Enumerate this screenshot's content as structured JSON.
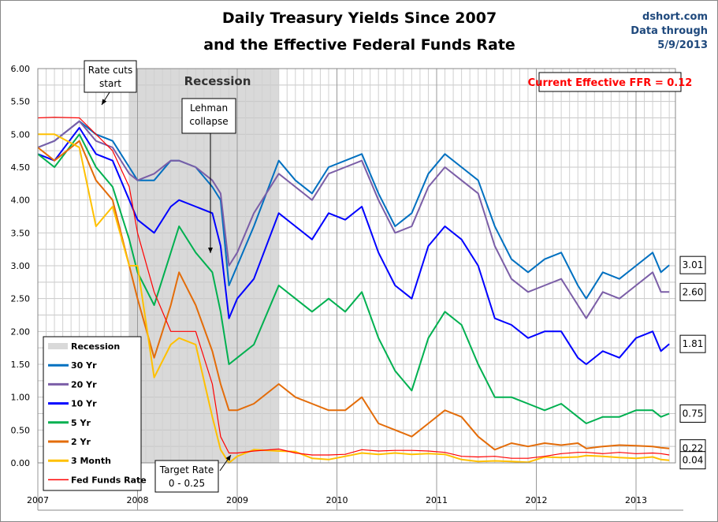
{
  "chart_data": {
    "type": "line",
    "title": "Daily Treasury Yields Since 2007",
    "subtitle": "and the Effective Federal Funds Rate",
    "source": "dshort.com",
    "data_through_label": "Data through",
    "data_through_date": "5/9/2013",
    "current_ffr_label": "Current Effective FFR = 0.12",
    "ylim": [
      0,
      6
    ],
    "y_ticks": [
      "0.00",
      "0.50",
      "1.00",
      "1.50",
      "2.00",
      "2.50",
      "3.00",
      "3.50",
      "4.00",
      "4.50",
      "5.00",
      "5.50",
      "6.00"
    ],
    "x_ticks": [
      "2007",
      "2008",
      "2009",
      "2010",
      "2011",
      "2012",
      "2013"
    ],
    "grid": true,
    "legend_placement": "bottom-left",
    "recession": {
      "label": "Recession",
      "start": "2007-12",
      "end": "2009-06",
      "color": "#d9d9d9"
    },
    "annotations": [
      {
        "text": [
          "Rate cuts",
          "start"
        ],
        "date": "2007-09"
      },
      {
        "text": [
          "Lehman",
          "collapse"
        ],
        "date": "2008-09"
      },
      {
        "text": [
          "Target Rate",
          "0 - 0.25"
        ],
        "date": "2008-12"
      }
    ],
    "dates": [
      "2007-01",
      "2007-03",
      "2007-06",
      "2007-08",
      "2007-10",
      "2007-12",
      "2008-01",
      "2008-03",
      "2008-05",
      "2008-06",
      "2008-08",
      "2008-10",
      "2008-11",
      "2008-12",
      "2009-01",
      "2009-03",
      "2009-06",
      "2009-08",
      "2009-10",
      "2009-12",
      "2010-02",
      "2010-04",
      "2010-06",
      "2010-08",
      "2010-10",
      "2010-12",
      "2011-02",
      "2011-04",
      "2011-06",
      "2011-08",
      "2011-10",
      "2011-12",
      "2012-02",
      "2012-04",
      "2012-06",
      "2012-07",
      "2012-09",
      "2012-11",
      "2013-01",
      "2013-03",
      "2013-04",
      "2013-05"
    ],
    "series": [
      {
        "name": "30 Yr",
        "color": "#0070C0",
        "end_label": "3.01",
        "values": [
          4.8,
          4.9,
          5.2,
          5.0,
          4.9,
          4.5,
          4.3,
          4.3,
          4.6,
          4.6,
          4.5,
          4.2,
          4.0,
          2.7,
          3.0,
          3.6,
          4.6,
          4.3,
          4.1,
          4.5,
          4.6,
          4.7,
          4.1,
          3.6,
          3.8,
          4.4,
          4.7,
          4.5,
          4.3,
          3.6,
          3.1,
          2.9,
          3.1,
          3.2,
          2.7,
          2.5,
          2.9,
          2.8,
          3.0,
          3.2,
          2.9,
          3.01
        ]
      },
      {
        "name": "20 Yr",
        "color": "#7B5EA7",
        "end_label": "2.60",
        "values": [
          4.8,
          4.9,
          5.2,
          4.9,
          4.8,
          4.4,
          4.3,
          4.4,
          4.6,
          4.6,
          4.5,
          4.3,
          4.1,
          3.0,
          3.2,
          3.8,
          4.4,
          4.2,
          4.0,
          4.4,
          4.5,
          4.6,
          4.0,
          3.5,
          3.6,
          4.2,
          4.5,
          4.3,
          4.1,
          3.3,
          2.8,
          2.6,
          2.7,
          2.8,
          2.4,
          2.2,
          2.6,
          2.5,
          2.7,
          2.9,
          2.6,
          2.6
        ]
      },
      {
        "name": "10 Yr",
        "color": "#0000FF",
        "end_label": "1.81",
        "values": [
          4.7,
          4.6,
          5.1,
          4.7,
          4.6,
          4.0,
          3.7,
          3.5,
          3.9,
          4.0,
          3.9,
          3.8,
          3.3,
          2.2,
          2.5,
          2.8,
          3.8,
          3.6,
          3.4,
          3.8,
          3.7,
          3.9,
          3.2,
          2.7,
          2.5,
          3.3,
          3.6,
          3.4,
          3.0,
          2.2,
          2.1,
          1.9,
          2.0,
          2.0,
          1.6,
          1.5,
          1.7,
          1.6,
          1.9,
          2.0,
          1.7,
          1.81
        ]
      },
      {
        "name": "5 Yr",
        "color": "#00B050",
        "end_label": "0.75",
        "values": [
          4.7,
          4.5,
          5.0,
          4.5,
          4.2,
          3.4,
          2.9,
          2.4,
          3.2,
          3.6,
          3.2,
          2.9,
          2.3,
          1.5,
          1.6,
          1.8,
          2.7,
          2.5,
          2.3,
          2.5,
          2.3,
          2.6,
          1.9,
          1.4,
          1.1,
          1.9,
          2.3,
          2.1,
          1.5,
          1.0,
          1.0,
          0.9,
          0.8,
          0.9,
          0.7,
          0.6,
          0.7,
          0.7,
          0.8,
          0.8,
          0.7,
          0.75
        ]
      },
      {
        "name": "2 Yr",
        "color": "#E36C09",
        "end_label": "0.22",
        "values": [
          4.8,
          4.6,
          4.9,
          4.3,
          4.0,
          3.0,
          2.5,
          1.6,
          2.4,
          2.9,
          2.4,
          1.7,
          1.2,
          0.8,
          0.8,
          0.9,
          1.2,
          1.0,
          0.9,
          0.8,
          0.8,
          1.0,
          0.6,
          0.5,
          0.4,
          0.6,
          0.8,
          0.7,
          0.4,
          0.2,
          0.3,
          0.25,
          0.3,
          0.27,
          0.3,
          0.22,
          0.25,
          0.27,
          0.26,
          0.25,
          0.23,
          0.22
        ]
      },
      {
        "name": "3 Month",
        "color": "#FFC000",
        "end_label": "0.04",
        "values": [
          5.0,
          5.0,
          4.8,
          3.6,
          3.9,
          3.0,
          3.0,
          1.3,
          1.8,
          1.9,
          1.8,
          0.7,
          0.2,
          0.0,
          0.1,
          0.2,
          0.18,
          0.17,
          0.07,
          0.05,
          0.1,
          0.15,
          0.13,
          0.15,
          0.13,
          0.14,
          0.13,
          0.05,
          0.02,
          0.03,
          0.02,
          0.01,
          0.09,
          0.08,
          0.09,
          0.11,
          0.1,
          0.08,
          0.07,
          0.09,
          0.05,
          0.04
        ]
      },
      {
        "name": "Fed Funds Rate",
        "color": "#FF0000",
        "values": [
          5.25,
          5.26,
          5.25,
          5.0,
          4.75,
          4.2,
          3.5,
          2.6,
          2.0,
          2.0,
          2.0,
          1.2,
          0.4,
          0.15,
          0.15,
          0.18,
          0.21,
          0.15,
          0.12,
          0.12,
          0.13,
          0.2,
          0.18,
          0.19,
          0.19,
          0.18,
          0.16,
          0.1,
          0.09,
          0.1,
          0.07,
          0.07,
          0.1,
          0.14,
          0.16,
          0.16,
          0.14,
          0.16,
          0.14,
          0.15,
          0.14,
          0.12
        ]
      }
    ]
  }
}
